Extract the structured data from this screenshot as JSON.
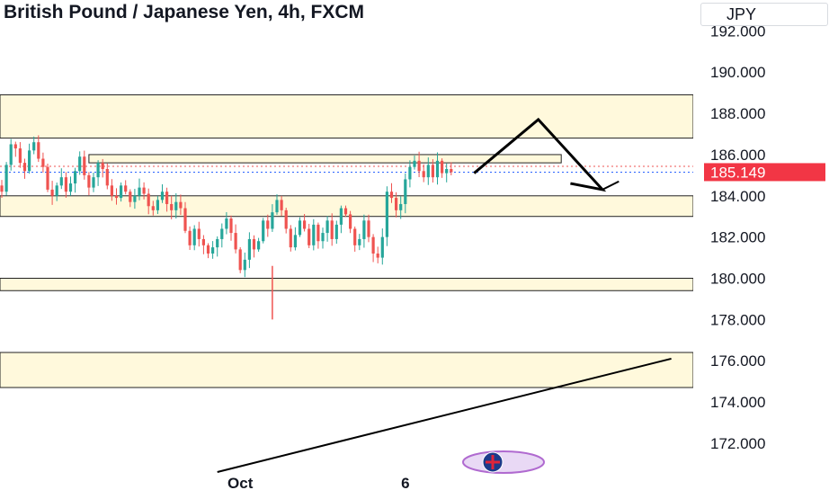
{
  "header": {
    "title": "British Pound / Japanese Yen, 4h, FXCM",
    "currency": "JPY"
  },
  "colors": {
    "up": "#26a69a",
    "down": "#ef5350",
    "zone_fill": "#fff9dc",
    "price_tag": "#f23645",
    "drawing": "#000000"
  },
  "chart_data": {
    "type": "candlestick",
    "title": "British Pound / Japanese Yen, 4h, FXCM",
    "ylim": [
      170.6,
      193.5
    ],
    "y_ticks": [
      "192.000",
      "190.000",
      "188.000",
      "186.000",
      "184.000",
      "182.000",
      "180.000",
      "178.000",
      "176.000",
      "174.000",
      "172.000"
    ],
    "x_ticks": [
      {
        "label": "Oct",
        "index": 52
      },
      {
        "label": "6",
        "index": 88
      }
    ],
    "last_price": "185.149",
    "last_price_value": 185.149,
    "close_path": [
      184.2,
      185.5,
      186.5,
      186.3,
      185.6,
      185.2,
      186.2,
      186.6,
      185.8,
      185.4,
      184.3,
      184.0,
      184.5,
      184.9,
      184.2,
      184.6,
      185.2,
      185.9,
      185.0,
      184.4,
      184.9,
      185.6,
      185.3,
      184.5,
      184.0,
      183.9,
      184.5,
      184.2,
      183.7,
      184.0,
      184.4,
      184.1,
      183.5,
      183.3,
      183.8,
      184.2,
      183.6,
      183.3,
      183.7,
      183.4,
      182.3,
      181.6,
      182.4,
      181.9,
      181.6,
      181.2,
      181.5,
      181.9,
      182.4,
      182.9,
      182.2,
      181.4,
      180.4,
      180.9,
      181.9,
      181.4,
      181.8,
      182.8,
      182.4,
      183.2,
      183.8,
      183.3,
      182.4,
      181.5,
      182.1,
      182.8,
      182.4,
      181.6,
      182.6,
      181.8,
      182.2,
      182.8,
      181.9,
      182.6,
      183.4,
      183.1,
      182.4,
      181.6,
      181.9,
      182.8,
      182.0,
      181.2,
      181.0,
      182.0,
      184.2,
      183.9,
      183.3,
      183.6,
      184.8,
      185.4,
      185.7,
      185.2,
      184.9,
      185.5,
      184.9,
      185.7,
      185.1,
      185.3,
      185.149
    ],
    "zones": [
      {
        "top": 188.9,
        "bottom": 186.8
      },
      {
        "top": 184.0,
        "bottom": 183.0
      },
      {
        "top": 180.0,
        "bottom": 179.4
      },
      {
        "top": 176.4,
        "bottom": 174.7
      }
    ],
    "thin_box": {
      "from_index": 19,
      "to_index": 122,
      "top": 186.0,
      "bottom": 185.6
    },
    "trendline": {
      "from": {
        "index": 47,
        "price": 170.6
      },
      "to": {
        "index": 146,
        "price": 176.1
      }
    },
    "projection": [
      {
        "index": 103,
        "price": 185.1
      },
      {
        "index": 117,
        "price": 187.7
      },
      {
        "index": 131,
        "price": 184.3
      },
      {
        "index": 124,
        "price": 184.6
      }
    ],
    "projection_tail": {
      "from": {
        "index": 131,
        "price": 184.3
      },
      "to": {
        "index": 133,
        "price": 184.7
      }
    }
  }
}
